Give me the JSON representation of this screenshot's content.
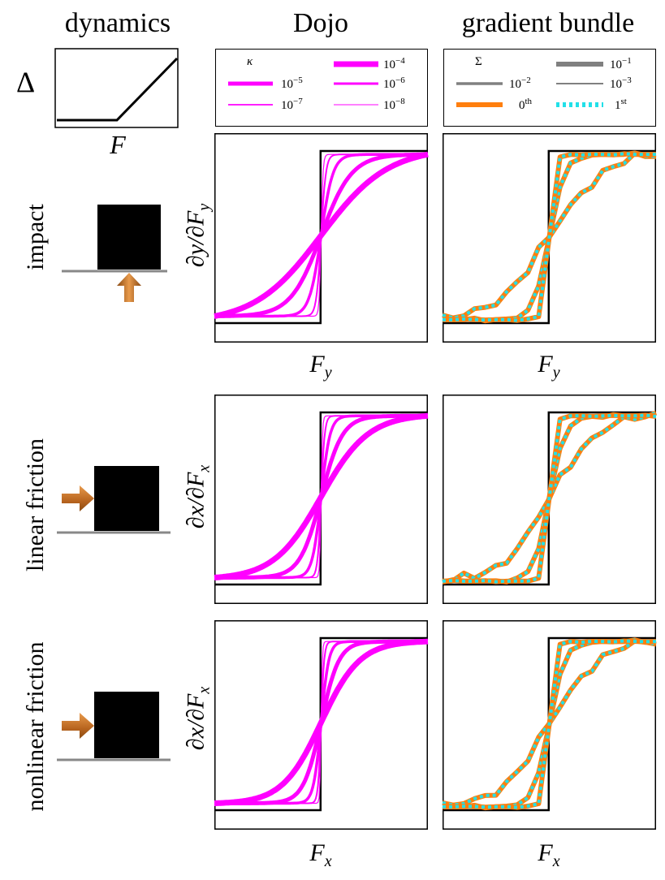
{
  "columns": {
    "dynamics": "dynamics",
    "dojo": "Dojo",
    "bundle": "gradient bundle"
  },
  "rows": [
    "impact",
    "linear friction",
    "nonlinear friction"
  ],
  "delta_panel": {
    "ylabel": "Δ",
    "xlabel": "F"
  },
  "dojo_legend": {
    "title": "κ",
    "entries": [
      {
        "label": "10",
        "exp": "−4"
      },
      {
        "label": "10",
        "exp": "−5"
      },
      {
        "label": "10",
        "exp": "−6"
      },
      {
        "label": "10",
        "exp": "−7"
      },
      {
        "label": "10",
        "exp": "−8"
      }
    ]
  },
  "bundle_legend": {
    "title": "Σ",
    "entries": [
      {
        "label": "10",
        "exp": "−1"
      },
      {
        "label": "10",
        "exp": "−2"
      },
      {
        "label": "10",
        "exp": "−3"
      },
      {
        "label": "0",
        "exp": "th"
      },
      {
        "label": "1",
        "exp": "st"
      }
    ]
  },
  "axis_labels": {
    "impact": {
      "ylabel_main": "∂y/∂F",
      "ylabel_sub": "y",
      "xlabel_main": "F",
      "xlabel_sub": "y"
    },
    "linear": {
      "ylabel_main": "∂x/∂F",
      "ylabel_sub": "x"
    },
    "nonlinear": {
      "ylabel_main": "∂x/∂F",
      "ylabel_sub": "x",
      "xlabel_main": "F",
      "xlabel_sub": "x"
    }
  },
  "colors": {
    "dojo": "#ff00ff",
    "bundle_0th": "#ff7f0e",
    "bundle_1st": "#22e0e8",
    "grey": "#808080",
    "true_step": "#000000",
    "arrow": "#c8722a"
  },
  "chart_data": [
    {
      "type": "line",
      "panel": "delta-dynamics",
      "xlabel": "F",
      "ylabel": "Δ",
      "x": [
        0,
        0.5,
        1
      ],
      "series": [
        {
          "values": [
            0,
            0,
            0.85
          ]
        }
      ]
    },
    {
      "type": "line",
      "panel": "dojo",
      "rows": [
        "impact",
        "linear friction",
        "nonlinear friction"
      ],
      "xlim": [
        -1,
        1
      ],
      "ylim": [
        0,
        1
      ],
      "true_gradient": "step at x = 0",
      "series": [
        {
          "name": "10−4",
          "kappa": 0.0001
        },
        {
          "name": "10−5",
          "kappa": 1e-05
        },
        {
          "name": "10−6",
          "kappa": 1e-06
        },
        {
          "name": "10−7",
          "kappa": 1e-07
        },
        {
          "name": "10−8",
          "kappa": 1e-08
        }
      ]
    },
    {
      "type": "line",
      "panel": "gradient-bundle",
      "rows": [
        "impact",
        "linear friction",
        "nonlinear friction"
      ],
      "xlim": [
        -1,
        1
      ],
      "ylim": [
        0,
        1
      ],
      "true_gradient": "step at x = 0",
      "series": [
        {
          "name": "10−1",
          "sigma": 0.1
        },
        {
          "name": "10−2",
          "sigma": 0.01
        },
        {
          "name": "10−3",
          "sigma": 0.001
        },
        {
          "name": "0th"
        },
        {
          "name": "1st"
        }
      ]
    }
  ]
}
